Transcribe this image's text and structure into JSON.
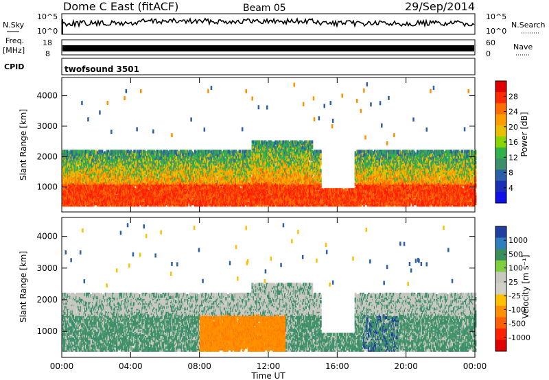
{
  "header": {
    "station": "Dome C East (fitACF)",
    "beam": "Beam 05",
    "date": "29/Sep/2014"
  },
  "strips": {
    "nsky": {
      "label": "N.Sky",
      "ticks": [
        "10^5",
        "10^0"
      ],
      "right_label": "N.Search",
      "right_ticks": [
        "10^5",
        "10^0"
      ]
    },
    "freq": {
      "label_line1": "Freq.",
      "label_line2": "[MHz]",
      "ticks": [
        "18",
        "8"
      ],
      "right_label": "Nave",
      "right_ticks": [
        "60",
        "0"
      ]
    },
    "cpid": {
      "label": "CPID",
      "program": "twofsound 3501"
    }
  },
  "chart_data": [
    {
      "type": "heatmap",
      "name": "power",
      "ylabel": "Slant Range [km]",
      "ylim": [
        180,
        4600
      ],
      "yticks": [
        1000,
        2000,
        3000,
        4000
      ],
      "xlim": [
        0,
        24
      ],
      "colorbar": {
        "label": "Power [dB]",
        "ticks": [
          "28",
          "24",
          "20",
          "16",
          "12",
          "8",
          "4"
        ],
        "colors": [
          "#e00000",
          "#ff2a00",
          "#ff6d00",
          "#ff9c00",
          "#e8c000",
          "#8ad400",
          "#2fb24a",
          "#3c8f6a",
          "#2b5fa8",
          "#1a2fb8",
          "#1010e8"
        ]
      }
    },
    {
      "type": "heatmap",
      "name": "velocity",
      "ylabel": "Slant Range [km]",
      "ylim": [
        180,
        4600
      ],
      "yticks": [
        1000,
        2000,
        3000,
        4000
      ],
      "xlim": [
        0,
        24
      ],
      "xlabel": "Time UT",
      "xticks": [
        "00:00",
        "04:00",
        "08:00",
        "12:00",
        "16:00",
        "20:00",
        "00:00"
      ],
      "colorbar": {
        "label": "Velocity [m s⁻¹]",
        "ticks": [
          "1000",
          "500",
          "100",
          "25",
          "-25",
          "-100",
          "-500",
          "-1000"
        ],
        "colors": [
          "#1f3fa0",
          "#2f7fc0",
          "#3b8f5a",
          "#7fcf3f",
          "#c8c8c0",
          "#d0d0c8",
          "#ffc000",
          "#ff9000",
          "#ff6000",
          "#ff2000",
          "#e00000"
        ]
      }
    }
  ]
}
